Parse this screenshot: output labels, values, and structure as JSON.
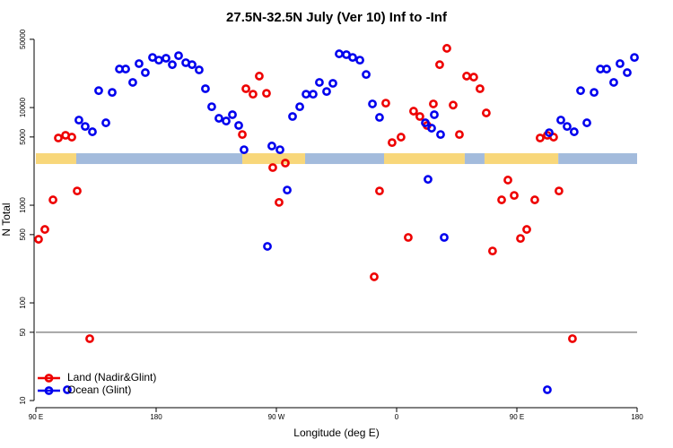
{
  "chart_data": {
    "type": "scatter",
    "title": "27.5N-32.5N July (Ver 10)   Inf to -Inf",
    "x_label": "Longitude (deg E)",
    "y_label": "N Total",
    "xlim": [
      90,
      540
    ],
    "xticks": [
      {
        "value": 90,
        "label": "90 E"
      },
      180,
      {
        "value": 270,
        "label": "90 W"
      },
      {
        "value": 360,
        "label": "0"
      },
      {
        "value": 450,
        "label": "90 E"
      },
      {
        "value": 540,
        "label": "180"
      }
    ],
    "ylim": [
      8.45,
      60300
    ],
    "yticks": [
      10,
      50,
      100,
      500,
      1000,
      5000,
      10000,
      50000
    ],
    "log_y": true,
    "reference_line": {
      "value": 50,
      "color": "#555555"
    },
    "surface_band": {
      "y": 3000,
      "segments": [
        {
          "x": [
            90,
            120.2
          ],
          "color": "#f8d77a"
        },
        {
          "x": [
            120.2,
            244.5
          ],
          "color": "#a3bbdc"
        },
        {
          "x": [
            244.5,
            291.5
          ],
          "color": "#f8d77a"
        },
        {
          "x": [
            291.5,
            350.6
          ],
          "color": "#a3bbdc"
        },
        {
          "x": [
            350.6,
            411
          ],
          "color": "#f8d77a"
        },
        {
          "x": [
            411,
            425.8
          ],
          "color": "#a3bbdc"
        },
        {
          "x": [
            425.8,
            481
          ],
          "color": "#f8d77a"
        },
        {
          "x": [
            481,
            540
          ],
          "color": "#a3bbdc"
        }
      ]
    },
    "legend": "bottom-left",
    "series": [
      {
        "name": "Land (Nadir&Glint)",
        "color": "#ee0000",
        "x": [
          92.0,
          96.7,
          102.8,
          106.8,
          112.2,
          116.9,
          120.9,
          130.3,
          244.5,
          247.2,
          252.5,
          257.2,
          262.6,
          267.3,
          272.0,
          276.7,
          343.2,
          347.2,
          351.9,
          356.6,
          363.3,
          368.7,
          372.7,
          377.4,
          382.8,
          387.5,
          392.2,
          397.6,
          402.3,
          407.0,
          412.4,
          417.7,
          422.4,
          427.1,
          431.8,
          438.6,
          443.3,
          448.0,
          452.7,
          457.4,
          463.4,
          467.4,
          472.8,
          477.5,
          481.5,
          491.6
        ],
        "values": [
          448,
          565,
          1135,
          4880,
          5200,
          4980,
          1400,
          43,
          5300,
          15600,
          13700,
          21000,
          14000,
          2430,
          1070,
          2700,
          185,
          1400,
          11100,
          4380,
          4980,
          468,
          9190,
          8100,
          6560,
          10900,
          27500,
          40400,
          10600,
          5300,
          21000,
          20500,
          15600,
          8810,
          340,
          1135,
          1810,
          1260,
          457,
          565,
          1135,
          4880,
          5200,
          4980,
          1400,
          43
        ]
      },
      {
        "name": "Ocean (Glint)",
        "color": "#0000ee",
        "x": [
          113.5,
          122.2,
          126.9,
          132.3,
          137.0,
          142.4,
          147.1,
          152.5,
          157.2,
          162.5,
          167.2,
          171.9,
          177.3,
          182.0,
          187.4,
          192.1,
          196.8,
          202.2,
          206.9,
          212.2,
          216.9,
          221.6,
          227.0,
          232.4,
          237.1,
          241.8,
          245.8,
          263.3,
          266.6,
          272.7,
          278.1,
          282.1,
          287.5,
          292.2,
          297.5,
          302.2,
          307.6,
          312.3,
          317.0,
          322.4,
          327.1,
          332.5,
          337.2,
          341.9,
          347.2,
          381.5,
          383.5,
          386.2,
          388.2,
          392.9,
          395.6,
          472.8,
          474.2,
          482.9,
          487.6,
          492.9,
          497.7,
          502.4,
          507.8,
          512.5,
          517.2,
          522.5,
          527.2,
          532.6,
          538.0
        ],
        "values": [
          12.9,
          7450,
          6410,
          5650,
          14900,
          6980,
          14300,
          24800,
          24800,
          18100,
          28200,
          22800,
          32600,
          30600,
          32000,
          27500,
          34000,
          28800,
          27500,
          24300,
          15600,
          10200,
          7760,
          7280,
          8450,
          6560,
          3700,
          379,
          4040,
          3700,
          1430,
          8100,
          10200,
          13700,
          13700,
          18100,
          14600,
          17700,
          35500,
          34800,
          32600,
          30600,
          21800,
          10900,
          7930,
          6980,
          1840,
          6150,
          8450,
          5300,
          468,
          12.9,
          5530,
          7450,
          6410,
          5650,
          14900,
          6980,
          14300,
          24800,
          24800,
          18100,
          28200,
          22800,
          32600
        ]
      }
    ]
  }
}
